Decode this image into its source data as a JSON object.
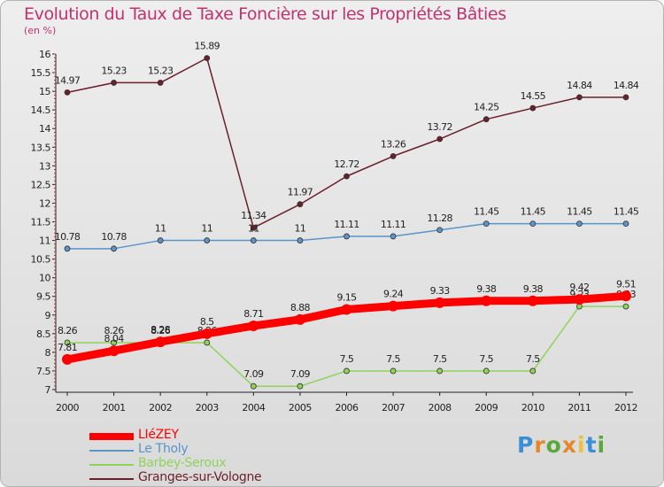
{
  "chart_data": {
    "type": "line",
    "title": "Evolution du Taux de Taxe Foncière sur les Propriétés Bâties",
    "subtitle": "(en %)",
    "x": [
      "2000",
      "2001",
      "2002",
      "2003",
      "2004",
      "2005",
      "2006",
      "2007",
      "2008",
      "2009",
      "2010",
      "2011",
      "2012"
    ],
    "ylim": [
      7,
      16
    ],
    "yticks": [
      "7",
      "7.5",
      "8",
      "8.5",
      "9",
      "9.5",
      "10",
      "10.5",
      "11",
      "11.5",
      "12",
      "12.5",
      "13",
      "13.5",
      "14",
      "14.5",
      "15",
      "15.5",
      "16"
    ],
    "series": [
      {
        "name": "Granges-sur-Vologne",
        "color": "#6b1f2a",
        "values": [
          14.97,
          15.23,
          15.23,
          15.89,
          11.34,
          11.97,
          12.72,
          13.26,
          13.72,
          14.25,
          14.55,
          14.84,
          14.84
        ],
        "labels": [
          "14.97",
          "15.23",
          "15.23",
          "15.89",
          "11.34",
          "11.97",
          "12.72",
          "13.26",
          "13.72",
          "14.25",
          "14.55",
          "14.84",
          "14.84"
        ]
      },
      {
        "name": "Le Tholy",
        "color": "#5a94c8",
        "values": [
          10.78,
          10.78,
          11,
          11,
          11,
          11,
          11.11,
          11.11,
          11.28,
          11.45,
          11.45,
          11.45,
          11.45
        ],
        "labels": [
          "10.78",
          "10.78",
          "11",
          "11",
          "11",
          "11",
          "11.11",
          "11.11",
          "11.28",
          "11.45",
          "11.45",
          "11.45",
          "11.45"
        ]
      },
      {
        "name": "Barbey-Seroux",
        "color": "#8fd35a",
        "values": [
          8.26,
          8.26,
          8.26,
          8.26,
          7.09,
          7.09,
          7.5,
          7.5,
          7.5,
          7.5,
          7.5,
          9.23,
          9.23
        ],
        "labels": [
          "8.26",
          "8.26",
          "8.26",
          "8.26",
          "7.09",
          "7.09",
          "7.5",
          "7.5",
          "7.5",
          "7.5",
          "7.5",
          "9.23",
          "9.23"
        ]
      },
      {
        "name": "LIéZEY",
        "color": "#ff0000",
        "values": [
          7.81,
          8.04,
          8.28,
          8.5,
          8.71,
          8.88,
          9.15,
          9.24,
          9.33,
          9.38,
          9.38,
          9.42,
          9.51
        ],
        "labels": [
          "7.81",
          "8.04",
          "8.28",
          "8.5",
          "8.71",
          "8.88",
          "9.15",
          "9.24",
          "9.33",
          "9.38",
          "9.38",
          "9.42",
          "9.51"
        ]
      }
    ],
    "legend": [
      {
        "name": "LIéZEY",
        "color": "#ff0000"
      },
      {
        "name": "Le Tholy",
        "color": "#5a94c8"
      },
      {
        "name": "Barbey-Seroux",
        "color": "#8fd35a"
      },
      {
        "name": "Granges-sur-Vologne",
        "color": "#6b1f2a"
      }
    ],
    "legend_position": "bottom-left",
    "grid": false
  },
  "logo": {
    "letters": [
      "P",
      "r",
      "o",
      "x",
      "i",
      "t",
      "i"
    ]
  }
}
